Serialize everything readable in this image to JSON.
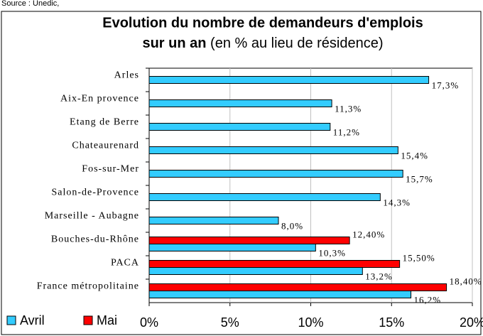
{
  "source": "Source : Unedic,",
  "chart_data": {
    "type": "hbar",
    "title_line1": "Evolution du nombre de demandeurs d'emplois",
    "title_bold": "sur un an",
    "title_rest": "(en % au lieu de résidence)",
    "categories": [
      "Arles",
      "Aix-En provence",
      "Etang de Berre",
      "Chateaurenard",
      "Fos-sur-Mer",
      "Salon-de-Provence",
      "Marseille - Aubagne",
      "Bouches-du-Rhône",
      "PACA",
      "France métropolitaine"
    ],
    "series": [
      {
        "name": "Avril",
        "color": "#33ccff",
        "values": [
          17.3,
          11.3,
          11.2,
          15.4,
          15.7,
          14.3,
          8.0,
          10.3,
          13.2,
          16.2
        ],
        "value_labels": [
          "17,3%",
          "11,3%",
          "11,2%",
          "15,4%",
          "15,7%",
          "14,3%",
          "8,0%",
          "10,3%",
          "13,2%",
          "16,2%"
        ]
      },
      {
        "name": "Mai",
        "color": "#ff0000",
        "values": [
          null,
          null,
          null,
          null,
          null,
          null,
          null,
          12.4,
          15.5,
          18.4
        ],
        "value_labels": [
          null,
          null,
          null,
          null,
          null,
          null,
          null,
          "12,40%",
          "15,50%",
          "18,40%"
        ]
      }
    ],
    "xlim": [
      0,
      20
    ],
    "xticks": [
      {
        "value": 0,
        "label": "0%"
      },
      {
        "value": 5,
        "label": "5%"
      },
      {
        "value": 10,
        "label": "10%"
      },
      {
        "value": 15,
        "label": "15%"
      },
      {
        "value": 20,
        "label": "20%"
      }
    ],
    "grid": true,
    "legend": "bottom-left"
  }
}
